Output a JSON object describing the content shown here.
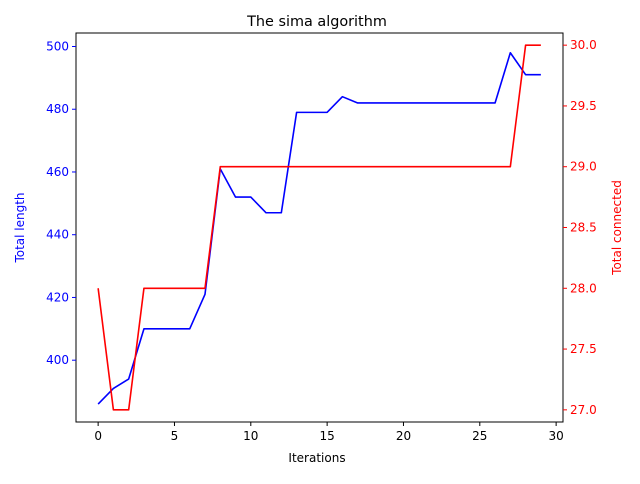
{
  "chart_data": {
    "type": "line",
    "title": "The sima algorithm",
    "xlabel": "Iterations",
    "ylabel_left": "Total length",
    "ylabel_right": "Total connected",
    "xlim": [
      -1.45,
      30.45
    ],
    "ylim_left": [
      380.3,
      504.3
    ],
    "ylim_right": [
      26.9,
      30.1
    ],
    "x_ticks": [
      0,
      5,
      10,
      15,
      20,
      25,
      30
    ],
    "x_tick_labels": [
      "0",
      "5",
      "10",
      "15",
      "20",
      "25",
      "30"
    ],
    "left_ticks": [
      400,
      420,
      440,
      460,
      480,
      500
    ],
    "left_tick_labels": [
      "400",
      "420",
      "440",
      "460",
      "480",
      "500"
    ],
    "right_ticks": [
      27.0,
      27.5,
      28.0,
      28.5,
      29.0,
      29.5,
      30.0
    ],
    "right_tick_labels": [
      "27.0",
      "27.5",
      "28.0",
      "28.5",
      "29.0",
      "29.5",
      "30.0"
    ],
    "grid": false,
    "x": [
      0,
      1,
      2,
      3,
      4,
      5,
      6,
      7,
      8,
      9,
      10,
      11,
      12,
      13,
      14,
      15,
      16,
      17,
      18,
      19,
      20,
      21,
      22,
      23,
      24,
      25,
      26,
      27,
      28,
      29
    ],
    "series": [
      {
        "axis": "left",
        "color": "#0000ff",
        "values": [
          386,
          391,
          394,
          410,
          410,
          410,
          410,
          421,
          461,
          452,
          452,
          447,
          447,
          479,
          479,
          479,
          484,
          482,
          482,
          482,
          482,
          482,
          482,
          482,
          482,
          482,
          482,
          498,
          491,
          491
        ]
      },
      {
        "axis": "right",
        "color": "#ff0000",
        "values": [
          28,
          27,
          27,
          28,
          28,
          28,
          28,
          28,
          29,
          29,
          29,
          29,
          29,
          29,
          29,
          29,
          29,
          29,
          29,
          29,
          29,
          29,
          29,
          29,
          29,
          29,
          29,
          29,
          30,
          30
        ]
      }
    ],
    "left_axis_color": "#0000ff",
    "right_axis_color": "#ff0000"
  }
}
